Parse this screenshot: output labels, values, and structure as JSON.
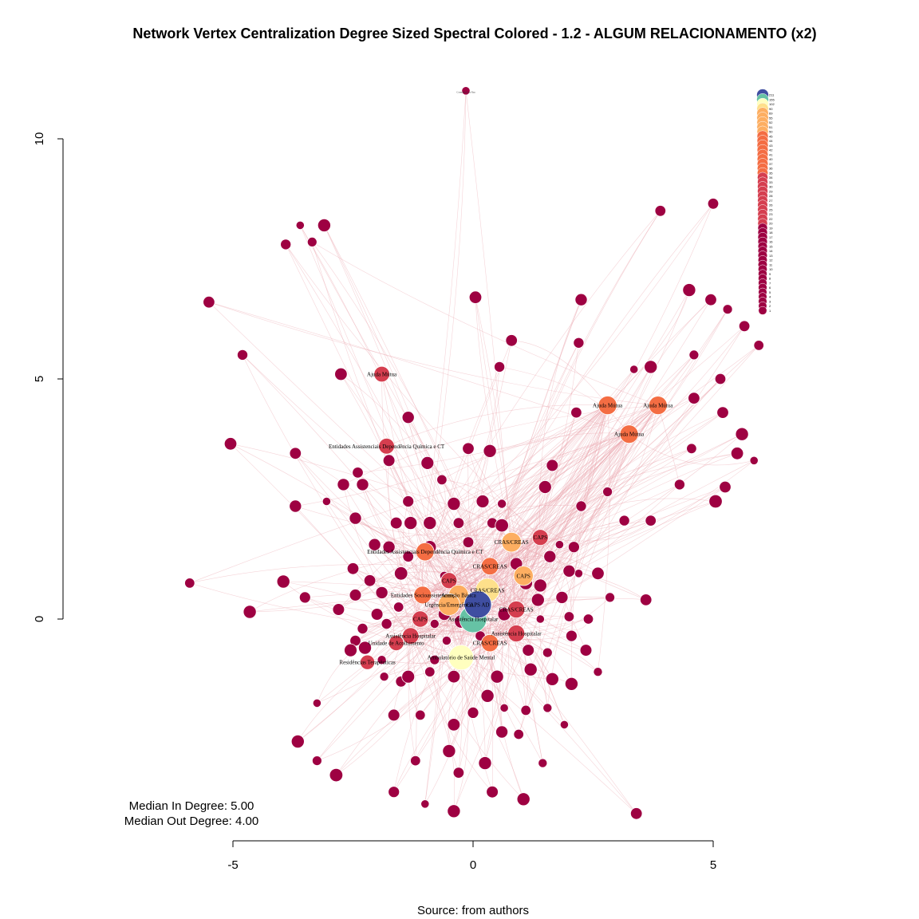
{
  "title": "Network Vertex Centralization Degree Sized Spectral Colored - 1.2 - ALGUM RELACIONAMENTO (x2)",
  "caption": "Source: from authors",
  "stats": {
    "median_in": "Median In Degree: 5.00",
    "median_out": "Median Out Degree: 4.00"
  },
  "x_axis": {
    "ticks": [
      "-5",
      "0",
      "5"
    ]
  },
  "y_axis": {
    "ticks": [
      "0",
      "5",
      "10"
    ]
  },
  "colors": {
    "edge": "#e8a0a8",
    "node_low": "#9e0142",
    "node_mid": "#f46d43",
    "node_orange": "#fdae61",
    "node_yellow": "#fee08b",
    "node_paleyellow": "#ffffbf",
    "node_green": "#66c2a5",
    "node_blue": "#3f4ea1",
    "node_border": "#ffffff"
  },
  "legend": {
    "labels": [
      "211",
      "155",
      "102",
      "90",
      "69",
      "55",
      "52",
      "51",
      "50",
      "45",
      "44",
      "43",
      "42",
      "41",
      "40",
      "37",
      "36",
      "35",
      "34",
      "33",
      "30",
      "29",
      "28",
      "27",
      "26",
      "25",
      "23",
      "22",
      "20",
      "19",
      "18",
      "17",
      "16",
      "15",
      "14",
      "13",
      "12",
      "11",
      "10",
      "9",
      "8",
      "7",
      "6",
      "5",
      "4",
      "3",
      "2",
      "1"
    ]
  },
  "chart_data": {
    "type": "network",
    "title": "Network Vertex Centralization Degree Sized Spectral Colored - 1.2 - ALGUM RELACIONAMENTO (x2)",
    "xlabel": "",
    "ylabel": "",
    "xlim": [
      -5,
      5
    ],
    "ylim": [
      0,
      10
    ],
    "caption": "Source: from authors",
    "nodes": [
      {
        "label": "CAPS AD",
        "x": 0.1,
        "y": 0.3,
        "degree": 211
      },
      {
        "label": "Assistência Hospitalar",
        "x": 0.0,
        "y": 0.0,
        "degree": 155
      },
      {
        "label": "Ambulatório de Saúde Mental",
        "x": -0.25,
        "y": -0.8,
        "degree": 102
      },
      {
        "label": "CRAS/CREAS",
        "x": 0.3,
        "y": 0.6,
        "degree": 90
      },
      {
        "label": "Urgência/Emergência",
        "x": -0.5,
        "y": 0.3,
        "degree": 69
      },
      {
        "label": "Atenção Básica",
        "x": -0.3,
        "y": 0.5,
        "degree": 55
      },
      {
        "label": "CRAS/CREAS",
        "x": 0.8,
        "y": 1.6,
        "degree": 52
      },
      {
        "label": "CAPS",
        "x": 1.05,
        "y": 0.9,
        "degree": 51
      },
      {
        "label": "Ajuda Mútua",
        "x": 2.8,
        "y": 4.45,
        "degree": 44
      },
      {
        "label": "Ajuda Mútua",
        "x": 3.85,
        "y": 4.45,
        "degree": 43
      },
      {
        "label": "Ajuda Mútua",
        "x": 3.25,
        "y": 3.85,
        "degree": 42
      },
      {
        "label": "Entidades Assistenciais Dependência Química e CT",
        "x": -1.0,
        "y": 1.4,
        "degree": 40
      },
      {
        "label": "Entidades Socioassistenciais",
        "x": -1.05,
        "y": 0.5,
        "degree": 37
      },
      {
        "label": "CRAS/CREAS",
        "x": 0.35,
        "y": 1.1,
        "degree": 36
      },
      {
        "label": "CRAS/CREAS",
        "x": 0.35,
        "y": -0.5,
        "degree": 35
      },
      {
        "label": "CRAS/CREAS",
        "x": 0.9,
        "y": 0.2,
        "degree": 34
      },
      {
        "label": "Assistência Hospitalar",
        "x": 0.9,
        "y": -0.3,
        "degree": 33
      },
      {
        "label": "Assistência Hospitalar",
        "x": -1.3,
        "y": -0.35,
        "degree": 30
      },
      {
        "label": "CAPS",
        "x": -1.1,
        "y": 0.0,
        "degree": 29
      },
      {
        "label": "CAPS",
        "x": -0.5,
        "y": 0.8,
        "degree": 28
      },
      {
        "label": "CAPS",
        "x": 1.4,
        "y": 1.7,
        "degree": 27
      },
      {
        "label": "Entidades Assistenciais Dependência Química e CT",
        "x": -1.8,
        "y": 3.6,
        "degree": 26
      },
      {
        "label": "Ajuda Mútua",
        "x": -1.9,
        "y": 5.1,
        "degree": 25
      },
      {
        "label": "Unidade de Acolhimento",
        "x": -1.6,
        "y": -0.5,
        "degree": 23
      },
      {
        "label": "Residências Terapêuticas",
        "x": -2.2,
        "y": -0.9,
        "degree": 20
      },
      {
        "label": "Consultório na Rua",
        "x": -0.15,
        "y": 11.0,
        "degree": 1
      }
    ],
    "edges": "dense curved links among nodes (not individually labelled)"
  }
}
